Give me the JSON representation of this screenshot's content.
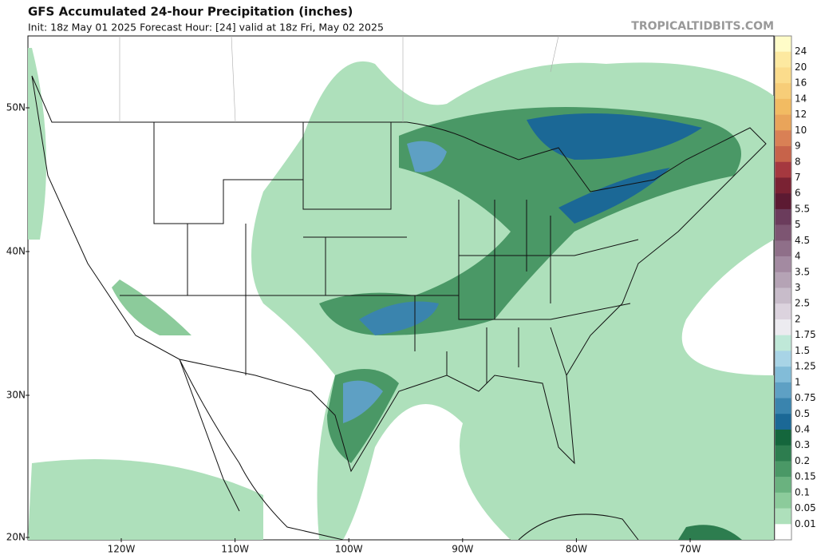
{
  "header": {
    "title": "GFS Accumulated 24-hour Precipitation (inches)",
    "subtitle": "Init: 18z May 01 2025   Forecast Hour: [24]   valid at 18z Fri, May 02 2025",
    "watermark": "TROPICALTIDBITS.COM"
  },
  "map": {
    "lat_labels": [
      "50N",
      "40N",
      "30N",
      "20N"
    ],
    "lon_labels": [
      "120W",
      "110W",
      "100W",
      "90W",
      "80W",
      "70W"
    ]
  },
  "colorbar": {
    "labels": [
      "24",
      "20",
      "16",
      "14",
      "12",
      "10",
      "9",
      "8",
      "7",
      "6",
      "5.5",
      "5",
      "4.5",
      "4",
      "3.5",
      "3",
      "2.5",
      "2",
      "1.75",
      "1.5",
      "1.25",
      "1",
      "0.75",
      "0.5",
      "0.4",
      "0.3",
      "0.2",
      "0.15",
      "0.1",
      "0.05",
      "0.01"
    ],
    "colors": [
      "#fffcc8",
      "#fde9a0",
      "#fbdc8c",
      "#f7cd78",
      "#f2bb62",
      "#e9a45a",
      "#d98055",
      "#c7634a",
      "#a5383f",
      "#7a2233",
      "#5c1a32",
      "#6b3c5c",
      "#7d5572",
      "#8f6f89",
      "#a38aa1",
      "#b5a3b5",
      "#c8bcca",
      "#dcd3de",
      "#ecebf0",
      "#bfe8d8",
      "#a8d4e6",
      "#82bcd8",
      "#5ea0c4",
      "#3a84ae",
      "#1b6896",
      "#14663c",
      "#2d7d4f",
      "#4a9866",
      "#6ab27f",
      "#8ccb9b",
      "#aee0bb",
      "#ffffff"
    ]
  }
}
